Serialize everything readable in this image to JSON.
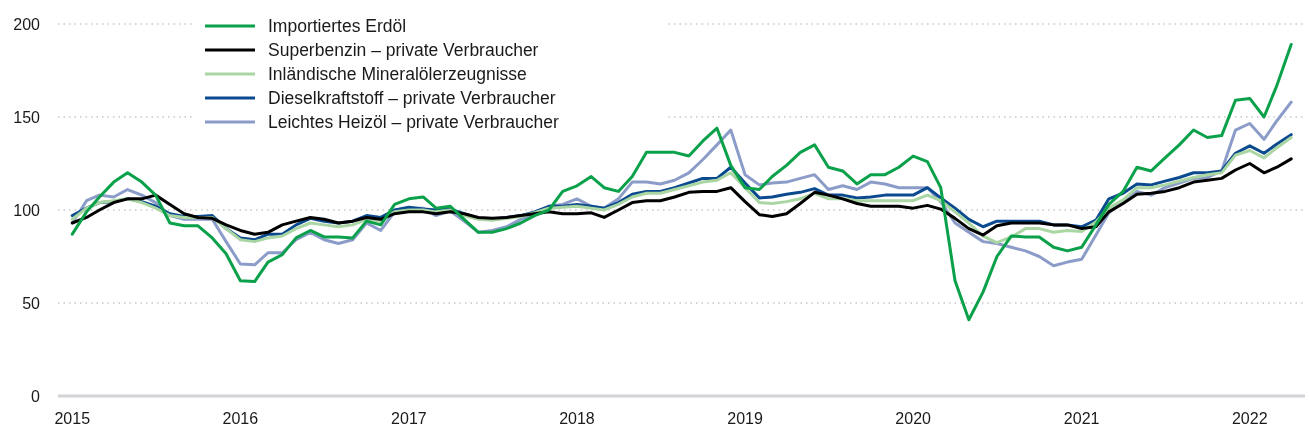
{
  "chart_data": {
    "type": "line",
    "x": [
      "2015-01",
      "2015-02",
      "2015-03",
      "2015-04",
      "2015-05",
      "2015-06",
      "2015-07",
      "2015-08",
      "2015-09",
      "2015-10",
      "2015-11",
      "2015-12",
      "2016-01",
      "2016-02",
      "2016-03",
      "2016-04",
      "2016-05",
      "2016-06",
      "2016-07",
      "2016-08",
      "2016-09",
      "2016-10",
      "2016-11",
      "2016-12",
      "2017-01",
      "2017-02",
      "2017-03",
      "2017-04",
      "2017-05",
      "2017-06",
      "2017-07",
      "2017-08",
      "2017-09",
      "2017-10",
      "2017-11",
      "2017-12",
      "2018-01",
      "2018-02",
      "2018-03",
      "2018-04",
      "2018-05",
      "2018-06",
      "2018-07",
      "2018-08",
      "2018-09",
      "2018-10",
      "2018-11",
      "2018-12",
      "2019-01",
      "2019-02",
      "2019-03",
      "2019-04",
      "2019-05",
      "2019-06",
      "2019-07",
      "2019-08",
      "2019-09",
      "2019-10",
      "2019-11",
      "2019-12",
      "2020-01",
      "2020-02",
      "2020-03",
      "2020-04",
      "2020-05",
      "2020-06",
      "2020-07",
      "2020-08",
      "2020-09",
      "2020-10",
      "2020-11",
      "2020-12",
      "2021-01",
      "2021-02",
      "2021-03",
      "2021-04",
      "2021-05",
      "2021-06",
      "2021-07",
      "2021-08",
      "2021-09",
      "2021-10",
      "2021-11",
      "2021-12",
      "2022-01",
      "2022-02",
      "2022-03",
      "2022-04"
    ],
    "series": [
      {
        "name": "Importiertes Erdöl",
        "color": "#0aa14a",
        "values": [
          87,
          99,
          107,
          115,
          120,
          115,
          108,
          93,
          91.5,
          91.5,
          85,
          76.5,
          62,
          61.5,
          72,
          76,
          85,
          89,
          85.5,
          85.5,
          85,
          94,
          92,
          103,
          106,
          107,
          101,
          102,
          95,
          88,
          88,
          90,
          93,
          97,
          100,
          110,
          113,
          118,
          112,
          110,
          118,
          131,
          131,
          131,
          129,
          137,
          144,
          124,
          112,
          111,
          118,
          124,
          131,
          135,
          123,
          121,
          114,
          119,
          119,
          123,
          129,
          126,
          112,
          62,
          41,
          56,
          75,
          86,
          85.5,
          85.5,
          80,
          78,
          80,
          92,
          103,
          110,
          123,
          121,
          128,
          135,
          143,
          139,
          140,
          159,
          160,
          150,
          167,
          189
        ]
      },
      {
        "name": "Superbenzin – private Verbraucher",
        "color": "#000000",
        "values": [
          93,
          96,
          100,
          104,
          106,
          106,
          108,
          103,
          98,
          96,
          95.5,
          92,
          89,
          87,
          88,
          92,
          94,
          96,
          95,
          93,
          94,
          96,
          95,
          98,
          99,
          99,
          98,
          99,
          98,
          96,
          95.5,
          96,
          97,
          98,
          99,
          98,
          98,
          98.5,
          96,
          100,
          104,
          105,
          105,
          107,
          109.5,
          110,
          110,
          112,
          104.5,
          97.5,
          96.5,
          98,
          103.5,
          109.5,
          108,
          106,
          103.5,
          102,
          102,
          102,
          101,
          102.5,
          100.5,
          95.5,
          90,
          86.5,
          91.5,
          93,
          93,
          93,
          92,
          92,
          90,
          91,
          99,
          103.5,
          108.5,
          109,
          110,
          112,
          115,
          116,
          117,
          121.5,
          125,
          120,
          123,
          127.5
        ]
      },
      {
        "name": "Inländische Mineralölerzeugnisse",
        "color": "#a9d6a3",
        "values": [
          95,
          101,
          104,
          105,
          106,
          104,
          101,
          97,
          96,
          96,
          96,
          90,
          84,
          83,
          85,
          86,
          90,
          93,
          92,
          91,
          92,
          95,
          94,
          99,
          100,
          100,
          99,
          100,
          97,
          95,
          94.5,
          95.5,
          96.5,
          98.5,
          101,
          101.5,
          102,
          101,
          100,
          103,
          107,
          109,
          109,
          111,
          113,
          115,
          116,
          120,
          112,
          104,
          103.5,
          104.5,
          106,
          109,
          106,
          106,
          105,
          105,
          105,
          105,
          105,
          108,
          105,
          99,
          93,
          86,
          82.5,
          85.5,
          90,
          90,
          88,
          89,
          88.5,
          93.5,
          101,
          105.5,
          112,
          112,
          113.5,
          115.5,
          117.5,
          119,
          120,
          129.5,
          132,
          128,
          133.5,
          139
        ]
      },
      {
        "name": "Dieselkraftstoff – private Verbraucher",
        "color": "#0b4a8f",
        "values": [
          97,
          101,
          104,
          104.5,
          106,
          104.5,
          102,
          98,
          96.5,
          96.5,
          97,
          90,
          85,
          84,
          87,
          87,
          92,
          95.5,
          94,
          93,
          94,
          97,
          96,
          100,
          101.5,
          100.5,
          100,
          100.5,
          98,
          95.5,
          95,
          96,
          97,
          99,
          102,
          102,
          103,
          102,
          101,
          104,
          108.5,
          110,
          110,
          112,
          114.5,
          117,
          117,
          123,
          114.5,
          106.5,
          107,
          108.5,
          109.5,
          111.5,
          108,
          108,
          106.5,
          107,
          108,
          108,
          108,
          112,
          106.5,
          101,
          95,
          91,
          94,
          94,
          94,
          94,
          92,
          92,
          91,
          94.5,
          106,
          109,
          114,
          113.5,
          115.5,
          117.5,
          120,
          120,
          121,
          130.5,
          134.5,
          130.5,
          135.5,
          140.5
        ]
      },
      {
        "name": "Leichtes Heizöl – private Verbraucher",
        "color": "#8c9cc9",
        "values": [
          93,
          105,
          108,
          107,
          111,
          108,
          104,
          97,
          95,
          95,
          95,
          83,
          71,
          70.5,
          77,
          77,
          84,
          88,
          84,
          82,
          84,
          93,
          89,
          99,
          101,
          101,
          97,
          99.5,
          94,
          88,
          89,
          91,
          95,
          97,
          102,
          103,
          106,
          102,
          101,
          106,
          115,
          115,
          114,
          116,
          120,
          127,
          135,
          143,
          119,
          113.5,
          114.5,
          115,
          117,
          119,
          111,
          113,
          111,
          115,
          114,
          112,
          112,
          112,
          104.5,
          93,
          88,
          83,
          82,
          80,
          78,
          75,
          70,
          72,
          73.5,
          86.5,
          98.5,
          104.5,
          110,
          108,
          112,
          114.5,
          117,
          117.5,
          121,
          143,
          146.5,
          138,
          148,
          158
        ]
      }
    ],
    "xlim": [
      "2014-12",
      "2022-05"
    ],
    "xticks": [
      "2015",
      "2016",
      "2017",
      "2018",
      "2019",
      "2020",
      "2021",
      "2022"
    ],
    "ylim": [
      0,
      200
    ],
    "yticks": [
      0,
      50,
      100,
      150,
      200
    ],
    "grid": "y",
    "legend": "top left"
  }
}
